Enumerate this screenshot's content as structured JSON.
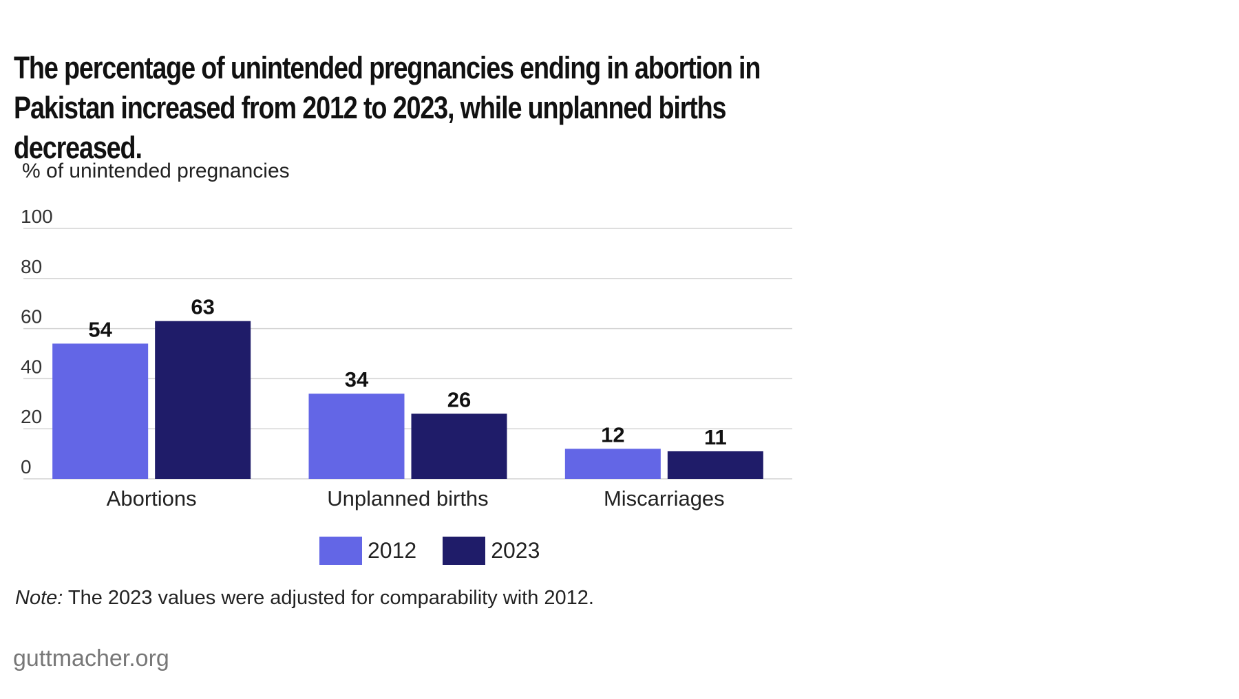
{
  "title": "The percentage of unintended pregnancies ending in abortion in Pakistan increased from 2012 to 2023, while unplanned births decreased.",
  "note": {
    "label": "Note:",
    "text": " The 2023 values were adjusted for comparability with 2012."
  },
  "source": "guttmacher.org",
  "chart_data": {
    "type": "bar",
    "title": "The percentage of unintended pregnancies ending in abortion in Pakistan increased from 2012 to 2023, while unplanned births decreased.",
    "xlabel": "",
    "ylabel": "% of unintended pregnancies",
    "ylim": [
      0,
      100
    ],
    "yticks": [
      0,
      20,
      40,
      60,
      80,
      100
    ],
    "grid": true,
    "legend_position": "bottom",
    "categories": [
      "Abortions",
      "Unplanned births",
      "Miscarriages"
    ],
    "series": [
      {
        "name": "2012",
        "color": "#6366e6",
        "values": [
          54,
          34,
          12
        ]
      },
      {
        "name": "2023",
        "color": "#1f1c69",
        "values": [
          63,
          26,
          11
        ]
      }
    ]
  }
}
